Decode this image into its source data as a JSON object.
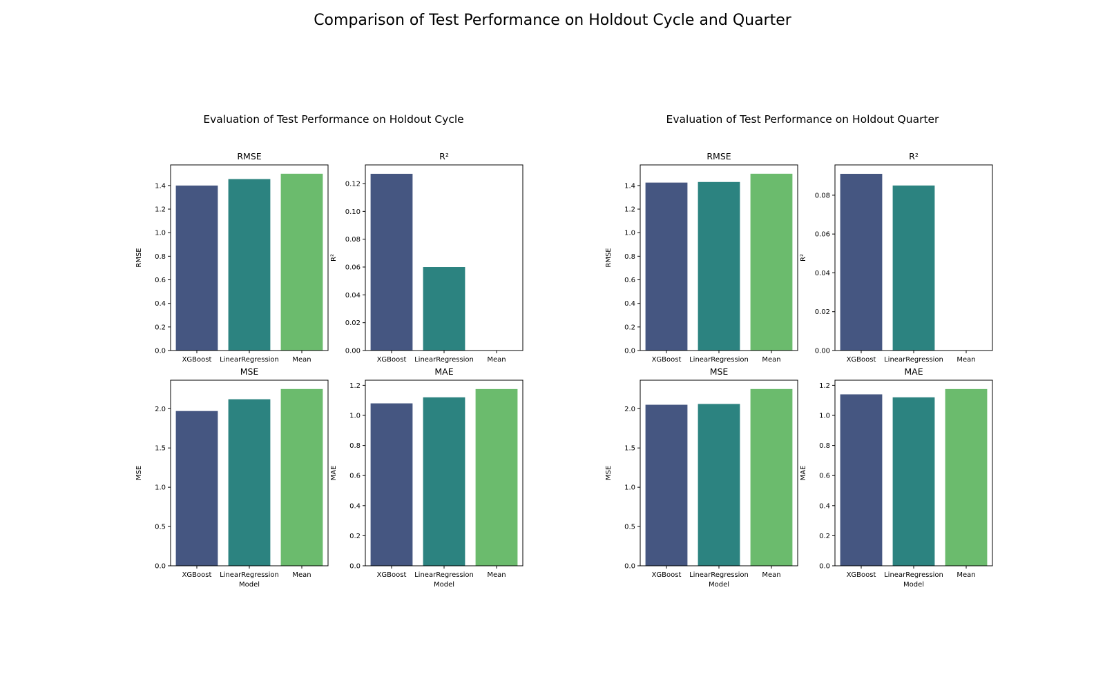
{
  "figure": {
    "suptitle": "Comparison of Test Performance on Holdout Cycle and Quarter"
  },
  "colors": {
    "bar": [
      "#455681",
      "#2c8380",
      "#6bbb6d"
    ],
    "axis": "#000000",
    "background": "#ffffff"
  },
  "chart_data": [
    {
      "group": "Evaluation of Test Performance on Holdout Cycle",
      "panels": [
        {
          "type": "bar",
          "title": "RMSE",
          "ylabel": "RMSE",
          "xlabel": "",
          "categories": [
            "XGBoost",
            "LinearRegression",
            "Mean"
          ],
          "values": [
            1.4,
            1.455,
            1.5
          ],
          "ylim": [
            0,
            1.575
          ],
          "yticks": [
            0.0,
            0.2,
            0.4,
            0.6,
            0.8,
            1.0,
            1.2,
            1.4
          ],
          "tick_decimals": 1
        },
        {
          "type": "bar",
          "title": "R²",
          "ylabel": "R²",
          "xlabel": "",
          "categories": [
            "XGBoost",
            "LinearRegression",
            "Mean"
          ],
          "values": [
            0.127,
            0.06,
            0.0
          ],
          "ylim": [
            0,
            0.1334
          ],
          "yticks": [
            0.0,
            0.02,
            0.04,
            0.06,
            0.08,
            0.1,
            0.12
          ],
          "tick_decimals": 2
        },
        {
          "type": "bar",
          "title": "MSE",
          "ylabel": "MSE",
          "xlabel": "Model",
          "categories": [
            "XGBoost",
            "LinearRegression",
            "Mean"
          ],
          "values": [
            1.97,
            2.12,
            2.25
          ],
          "ylim": [
            0,
            2.3625
          ],
          "yticks": [
            0.0,
            0.5,
            1.0,
            1.5,
            2.0
          ],
          "tick_decimals": 1
        },
        {
          "type": "bar",
          "title": "MAE",
          "ylabel": "MAE",
          "xlabel": "Model",
          "categories": [
            "XGBoost",
            "LinearRegression",
            "Mean"
          ],
          "values": [
            1.08,
            1.12,
            1.175
          ],
          "ylim": [
            0,
            1.234
          ],
          "yticks": [
            0.0,
            0.2,
            0.4,
            0.6,
            0.8,
            1.0,
            1.2
          ],
          "tick_decimals": 1
        }
      ]
    },
    {
      "group": "Evaluation of Test Performance on Holdout Quarter",
      "panels": [
        {
          "type": "bar",
          "title": "RMSE",
          "ylabel": "RMSE",
          "xlabel": "",
          "categories": [
            "XGBoost",
            "LinearRegression",
            "Mean"
          ],
          "values": [
            1.425,
            1.43,
            1.5
          ],
          "ylim": [
            0,
            1.575
          ],
          "yticks": [
            0.0,
            0.2,
            0.4,
            0.6,
            0.8,
            1.0,
            1.2,
            1.4
          ],
          "tick_decimals": 1
        },
        {
          "type": "bar",
          "title": "R²",
          "ylabel": "R²",
          "xlabel": "",
          "categories": [
            "XGBoost",
            "LinearRegression",
            "Mean"
          ],
          "values": [
            0.091,
            0.085,
            0.0
          ],
          "ylim": [
            0,
            0.0956
          ],
          "yticks": [
            0.0,
            0.02,
            0.04,
            0.06,
            0.08
          ],
          "tick_decimals": 2
        },
        {
          "type": "bar",
          "title": "MSE",
          "ylabel": "MSE",
          "xlabel": "Model",
          "categories": [
            "XGBoost",
            "LinearRegression",
            "Mean"
          ],
          "values": [
            2.05,
            2.06,
            2.25
          ],
          "ylim": [
            0,
            2.3625
          ],
          "yticks": [
            0.0,
            0.5,
            1.0,
            1.5,
            2.0
          ],
          "tick_decimals": 1
        },
        {
          "type": "bar",
          "title": "MAE",
          "ylabel": "MAE",
          "xlabel": "Model",
          "categories": [
            "XGBoost",
            "LinearRegression",
            "Mean"
          ],
          "values": [
            1.14,
            1.12,
            1.175
          ],
          "ylim": [
            0,
            1.234
          ],
          "yticks": [
            0.0,
            0.2,
            0.4,
            0.6,
            0.8,
            1.0,
            1.2
          ],
          "tick_decimals": 1
        }
      ]
    }
  ]
}
